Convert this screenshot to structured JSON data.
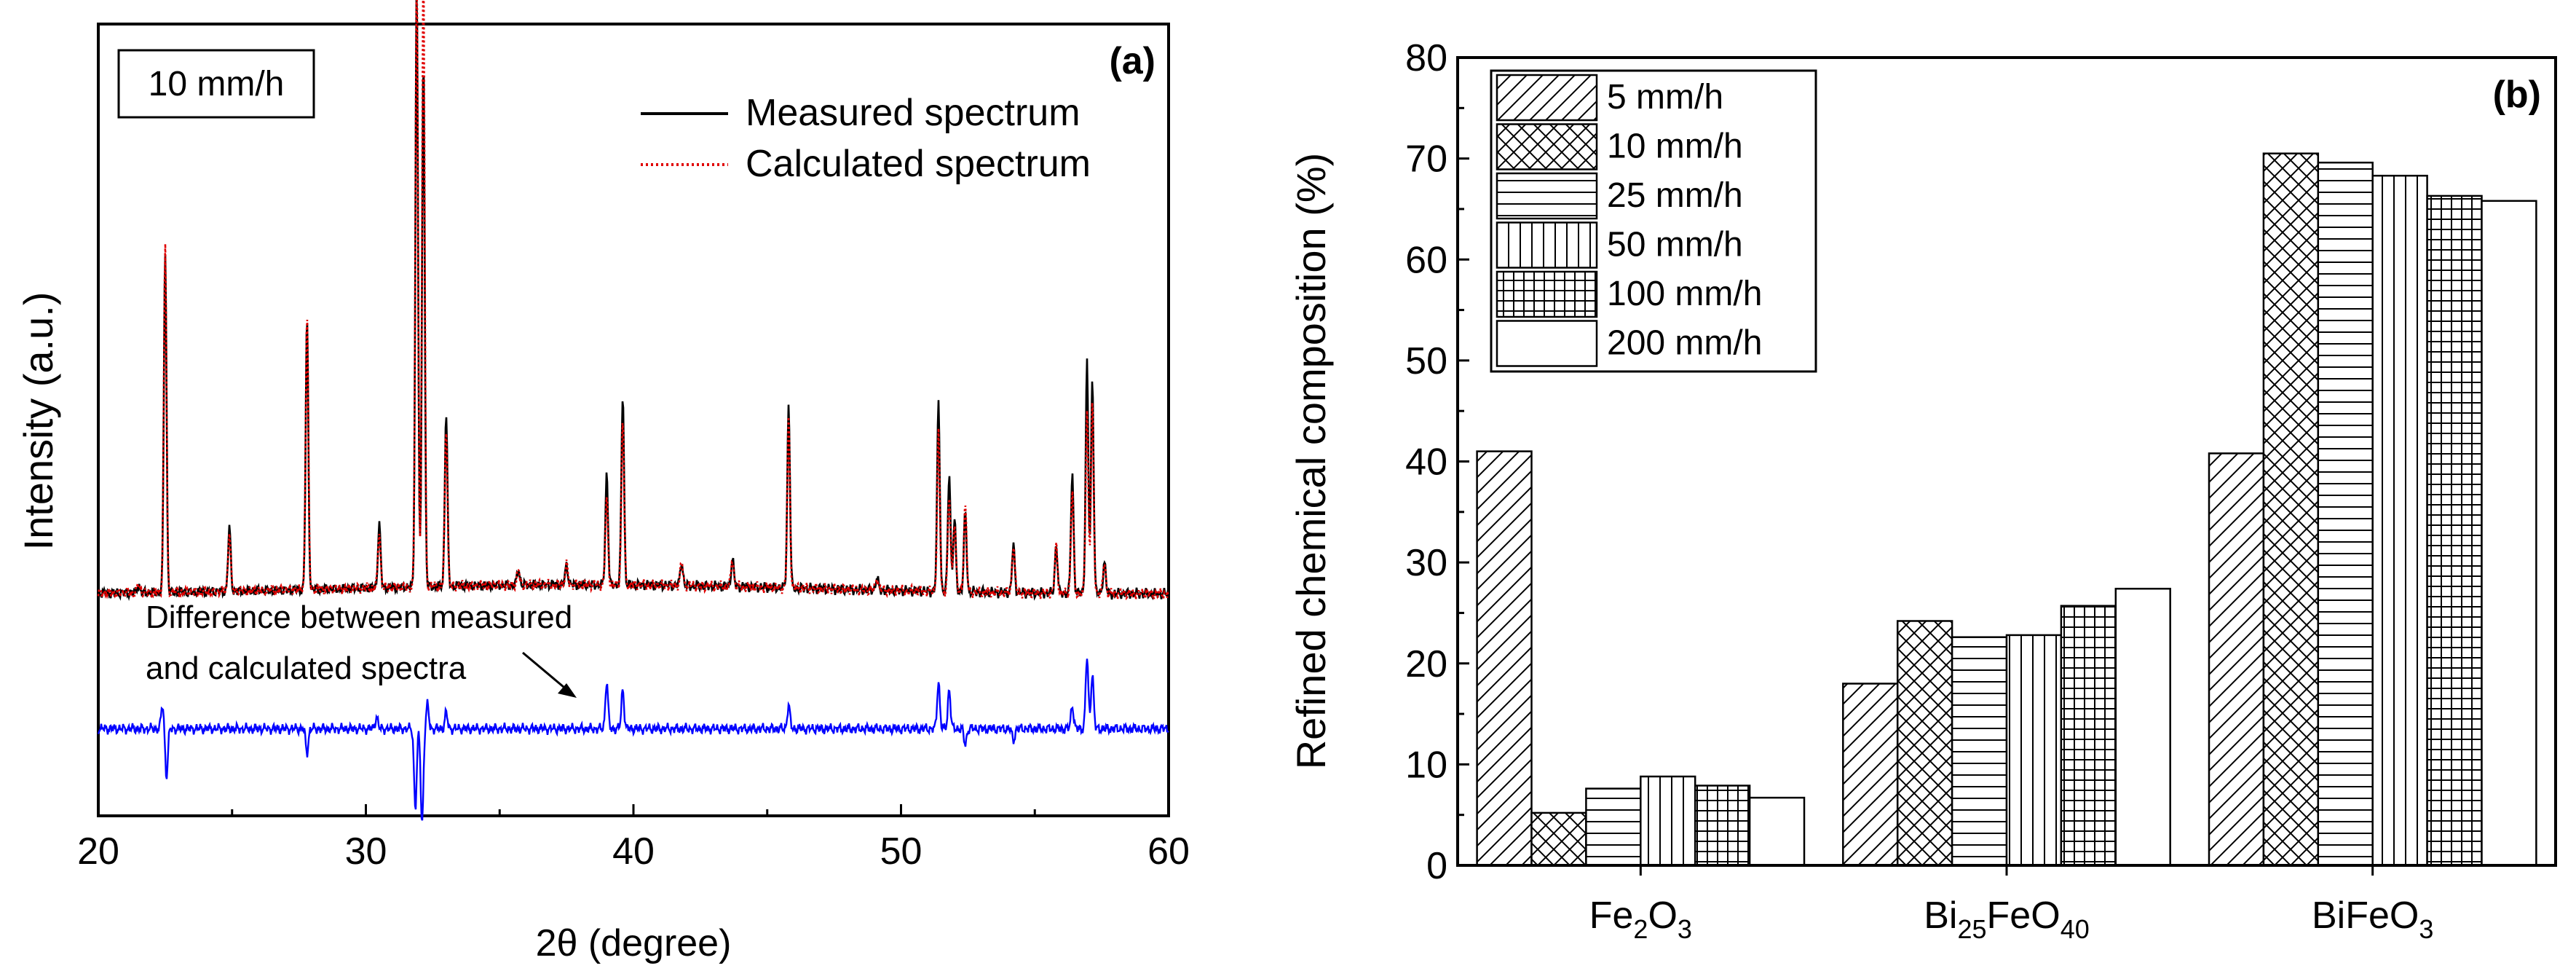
{
  "chart_data": [
    {
      "type": "line",
      "panel_label": "(a)",
      "inset_label": "10 mm/h",
      "xlabel": "2θ (degree)",
      "ylabel": "Intensity (a.u.)",
      "xlim": [
        20,
        60
      ],
      "xticks": [
        20,
        30,
        40,
        50,
        60
      ],
      "ylim": [
        0,
        100
      ],
      "legend": {
        "position": "top-right",
        "entries": [
          "Measured spectrum",
          "Calculated spectrum"
        ]
      },
      "annotation": [
        "Difference between measured",
        "and calculated spectra"
      ],
      "baselines": {
        "measured": 28,
        "difference": 11
      },
      "series": [
        {
          "name": "Measured spectrum",
          "color": "#000000",
          "peaks": [
            [
              21.5,
              1.0
            ],
            [
              22.5,
              43.0
            ],
            [
              24.9,
              8.0
            ],
            [
              27.8,
              34.0
            ],
            [
              30.5,
              8.0
            ],
            [
              31.9,
              76.0
            ],
            [
              32.15,
              67.0
            ],
            [
              33.0,
              22.0
            ],
            [
              35.7,
              2.0
            ],
            [
              37.5,
              2.5
            ],
            [
              39.0,
              14.0
            ],
            [
              39.6,
              24.0
            ],
            [
              41.8,
              3.0
            ],
            [
              43.7,
              3.5
            ],
            [
              45.8,
              23.0
            ],
            [
              49.1,
              1.5
            ],
            [
              51.4,
              24.0
            ],
            [
              51.8,
              15.0
            ],
            [
              52.0,
              9.0
            ],
            [
              52.4,
              10.0
            ],
            [
              54.2,
              6.0
            ],
            [
              55.8,
              6.0
            ],
            [
              56.4,
              15.0
            ],
            [
              56.95,
              29.0
            ],
            [
              57.15,
              27.0
            ],
            [
              57.6,
              4.0
            ]
          ]
        },
        {
          "name": "Calculated spectrum",
          "color": "#e00000",
          "peaks": [
            [
              21.5,
              1.0
            ],
            [
              22.5,
              44.0
            ],
            [
              24.9,
              7.5
            ],
            [
              27.8,
              35.0
            ],
            [
              30.5,
              7.0
            ],
            [
              31.9,
              78.0
            ],
            [
              32.15,
              79.0
            ],
            [
              33.0,
              20.0
            ],
            [
              35.7,
              2.0
            ],
            [
              37.5,
              2.5
            ],
            [
              39.0,
              11.0
            ],
            [
              39.6,
              21.0
            ],
            [
              41.8,
              3.0
            ],
            [
              43.7,
              3.5
            ],
            [
              45.8,
              21.0
            ],
            [
              49.1,
              1.5
            ],
            [
              51.4,
              20.0
            ],
            [
              51.8,
              12.0
            ],
            [
              52.0,
              9.0
            ],
            [
              52.4,
              11.0
            ],
            [
              54.2,
              6.0
            ],
            [
              55.8,
              6.0
            ],
            [
              56.4,
              13.0
            ],
            [
              56.95,
              23.0
            ],
            [
              57.15,
              24.0
            ],
            [
              57.6,
              4.0
            ]
          ]
        },
        {
          "name": "Difference between measured and calculated spectra",
          "color": "#0000ff",
          "peaks": [
            [
              22.4,
              3.0
            ],
            [
              22.55,
              -6.0
            ],
            [
              27.8,
              -3.0
            ],
            [
              30.4,
              1.5
            ],
            [
              31.85,
              -10.0
            ],
            [
              32.1,
              -12.0
            ],
            [
              32.3,
              3.0
            ],
            [
              33.0,
              2.0
            ],
            [
              39.0,
              6.0
            ],
            [
              39.6,
              5.0
            ],
            [
              45.8,
              3.0
            ],
            [
              51.4,
              6.0
            ],
            [
              51.8,
              5.0
            ],
            [
              52.4,
              -2.0
            ],
            [
              54.2,
              -1.5
            ],
            [
              56.4,
              3.0
            ],
            [
              56.95,
              9.0
            ],
            [
              57.15,
              7.0
            ]
          ]
        }
      ]
    },
    {
      "type": "bar",
      "panel_label": "(b)",
      "ylabel": "Refined chemical composition (%)",
      "ylim": [
        0,
        80
      ],
      "yticks": [
        0,
        10,
        20,
        30,
        40,
        50,
        60,
        70,
        80
      ],
      "categories": [
        "Fe2O3",
        "Bi25FeO40",
        "BiFeO3"
      ],
      "category_labels": [
        {
          "base": "Fe",
          "sub1": "2",
          "mid": "O",
          "sub2": "3",
          "tail": "",
          "sub3": ""
        },
        {
          "base": "Bi",
          "sub1": "25",
          "mid": "FeO",
          "sub2": "40",
          "tail": "",
          "sub3": ""
        },
        {
          "base": "BiFeO",
          "sub1": "3",
          "mid": "",
          "sub2": "",
          "tail": "",
          "sub3": ""
        }
      ],
      "legend": {
        "position": "top-left"
      },
      "series": [
        {
          "name": "5 mm/h",
          "pattern": "diag",
          "values": [
            41.0,
            18.0,
            40.8
          ]
        },
        {
          "name": "10 mm/h",
          "pattern": "cross",
          "values": [
            5.2,
            24.2,
            70.5
          ]
        },
        {
          "name": "25 mm/h",
          "pattern": "horiz",
          "values": [
            7.6,
            22.6,
            69.6
          ]
        },
        {
          "name": "50 mm/h",
          "pattern": "vert",
          "values": [
            8.8,
            22.8,
            68.3
          ]
        },
        {
          "name": "100 mm/h",
          "pattern": "grid",
          "values": [
            7.9,
            25.7,
            66.3
          ]
        },
        {
          "name": "200 mm/h",
          "pattern": "none",
          "values": [
            6.7,
            27.4,
            65.8
          ]
        }
      ]
    }
  ]
}
